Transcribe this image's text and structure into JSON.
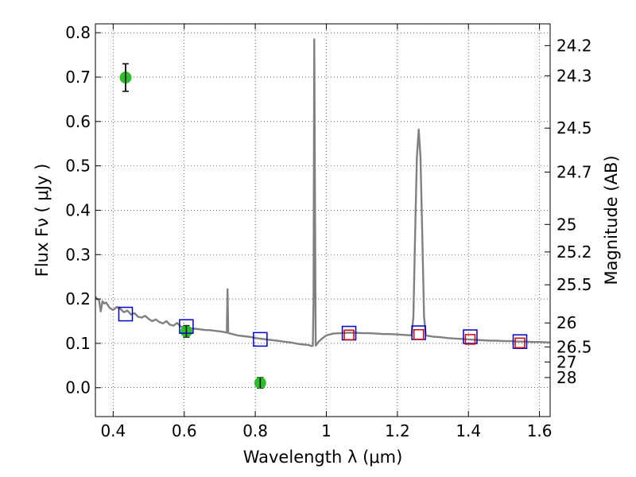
{
  "chart_data": {
    "type": "line",
    "xlabel": "Wavelength  λ (μm)",
    "ylabel": "Flux  Fν ( μJy )",
    "y2label": "Magnitude (AB)",
    "xlim": [
      0.35,
      1.63
    ],
    "ylim": [
      -0.065,
      0.82
    ],
    "grid": true,
    "x_ticks": [
      0.4,
      0.6,
      0.8,
      1.0,
      1.2,
      1.4,
      1.6
    ],
    "x_tick_labels": [
      "0.4",
      "0.6",
      "0.8",
      "1",
      "1.2",
      "1.4",
      "1.6"
    ],
    "y_ticks": [
      0.0,
      0.1,
      0.2,
      0.3,
      0.4,
      0.5,
      0.6,
      0.7,
      0.8
    ],
    "y_tick_labels": [
      "0.0",
      "0.1",
      "0.2",
      "0.3",
      "0.4",
      "0.5",
      "0.6",
      "0.7",
      "0.8"
    ],
    "mag_ticks": [
      {
        "value": 24.2,
        "flux": 0.771,
        "label": "24.2"
      },
      {
        "value": 24.3,
        "flux": 0.703,
        "label": "24.3"
      },
      {
        "value": 24.5,
        "flux": 0.585,
        "label": "24.5"
      },
      {
        "value": 24.7,
        "flux": 0.486,
        "label": "24.7"
      },
      {
        "value": 25.0,
        "flux": 0.368,
        "label": "25"
      },
      {
        "value": 25.2,
        "flux": 0.306,
        "label": "25.2"
      },
      {
        "value": 25.5,
        "flux": 0.232,
        "label": "25.5"
      },
      {
        "value": 26.0,
        "flux": 0.146,
        "label": "26"
      },
      {
        "value": 26.5,
        "flux": 0.092,
        "label": "26.5"
      },
      {
        "value": 27.0,
        "flux": 0.058,
        "label": "27"
      },
      {
        "value": 28.0,
        "flux": 0.023,
        "label": "28"
      }
    ],
    "series": [
      {
        "kind": "sed_model",
        "color": "#808080",
        "x": [
          0.35,
          0.355,
          0.36,
          0.365,
          0.37,
          0.375,
          0.38,
          0.39,
          0.4,
          0.41,
          0.42,
          0.43,
          0.44,
          0.45,
          0.46,
          0.47,
          0.48,
          0.49,
          0.5,
          0.51,
          0.52,
          0.53,
          0.54,
          0.55,
          0.56,
          0.57,
          0.58,
          0.59,
          0.6,
          0.61,
          0.62,
          0.63,
          0.64,
          0.65,
          0.66,
          0.67,
          0.68,
          0.69,
          0.7,
          0.71,
          0.715,
          0.72,
          0.722,
          0.724,
          0.726,
          0.728,
          0.73,
          0.74,
          0.75,
          0.76,
          0.77,
          0.78,
          0.79,
          0.8,
          0.82,
          0.84,
          0.86,
          0.88,
          0.9,
          0.92,
          0.94,
          0.95,
          0.955,
          0.958,
          0.96,
          0.962,
          0.964,
          0.966,
          0.968,
          0.97,
          0.975,
          0.98,
          0.99,
          1.0,
          1.01,
          1.02,
          1.04,
          1.06,
          1.08,
          1.1,
          1.12,
          1.14,
          1.16,
          1.18,
          1.2,
          1.22,
          1.24,
          1.245,
          1.25,
          1.255,
          1.26,
          1.265,
          1.27,
          1.275,
          1.28,
          1.3,
          1.32,
          1.34,
          1.36,
          1.38,
          1.4,
          1.42,
          1.44,
          1.46,
          1.48,
          1.5,
          1.52,
          1.54,
          1.56,
          1.58,
          1.6,
          1.63
        ],
        "y": [
          0.205,
          0.2,
          0.198,
          0.172,
          0.195,
          0.19,
          0.192,
          0.18,
          0.175,
          0.182,
          0.178,
          0.17,
          0.174,
          0.165,
          0.168,
          0.16,
          0.158,
          0.162,
          0.155,
          0.15,
          0.154,
          0.148,
          0.145,
          0.15,
          0.142,
          0.14,
          0.146,
          0.138,
          0.136,
          0.135,
          0.134,
          0.133,
          0.132,
          0.131,
          0.13,
          0.13,
          0.129,
          0.128,
          0.127,
          0.126,
          0.125,
          0.124,
          0.222,
          0.124,
          0.123,
          0.122,
          0.122,
          0.12,
          0.118,
          0.117,
          0.116,
          0.115,
          0.114,
          0.112,
          0.11,
          0.108,
          0.106,
          0.104,
          0.102,
          0.099,
          0.097,
          0.096,
          0.095,
          0.094,
          0.094,
          0.095,
          0.2,
          0.785,
          0.42,
          0.095,
          0.1,
          0.105,
          0.112,
          0.118,
          0.12,
          0.122,
          0.123,
          0.124,
          0.124,
          0.123,
          0.123,
          0.122,
          0.121,
          0.121,
          0.12,
          0.119,
          0.118,
          0.16,
          0.35,
          0.52,
          0.582,
          0.52,
          0.35,
          0.16,
          0.118,
          0.115,
          0.114,
          0.112,
          0.111,
          0.11,
          0.109,
          0.108,
          0.107,
          0.106,
          0.106,
          0.105,
          0.105,
          0.104,
          0.104,
          0.103,
          0.103,
          0.102
        ]
      },
      {
        "kind": "model_photometry",
        "marker": "square",
        "color": "#0000cc",
        "x": [
          0.435,
          0.606,
          0.814,
          1.064,
          1.26,
          1.405,
          1.545
        ],
        "y": [
          0.166,
          0.138,
          0.109,
          0.123,
          0.124,
          0.115,
          0.104
        ]
      },
      {
        "kind": "observed_photometry_nir",
        "marker": "square",
        "color": "#cc0000",
        "x": [
          1.064,
          1.26,
          1.405,
          1.545
        ],
        "y": [
          0.119,
          0.12,
          0.109,
          0.101
        ]
      },
      {
        "kind": "observed_photometry_optical",
        "marker": "circle",
        "color": "#22bb22",
        "x": [
          0.435,
          0.606,
          0.814
        ],
        "y": [
          0.699,
          0.127,
          0.011
        ],
        "yerr": [
          0.031,
          0.013,
          0.012
        ]
      }
    ]
  }
}
